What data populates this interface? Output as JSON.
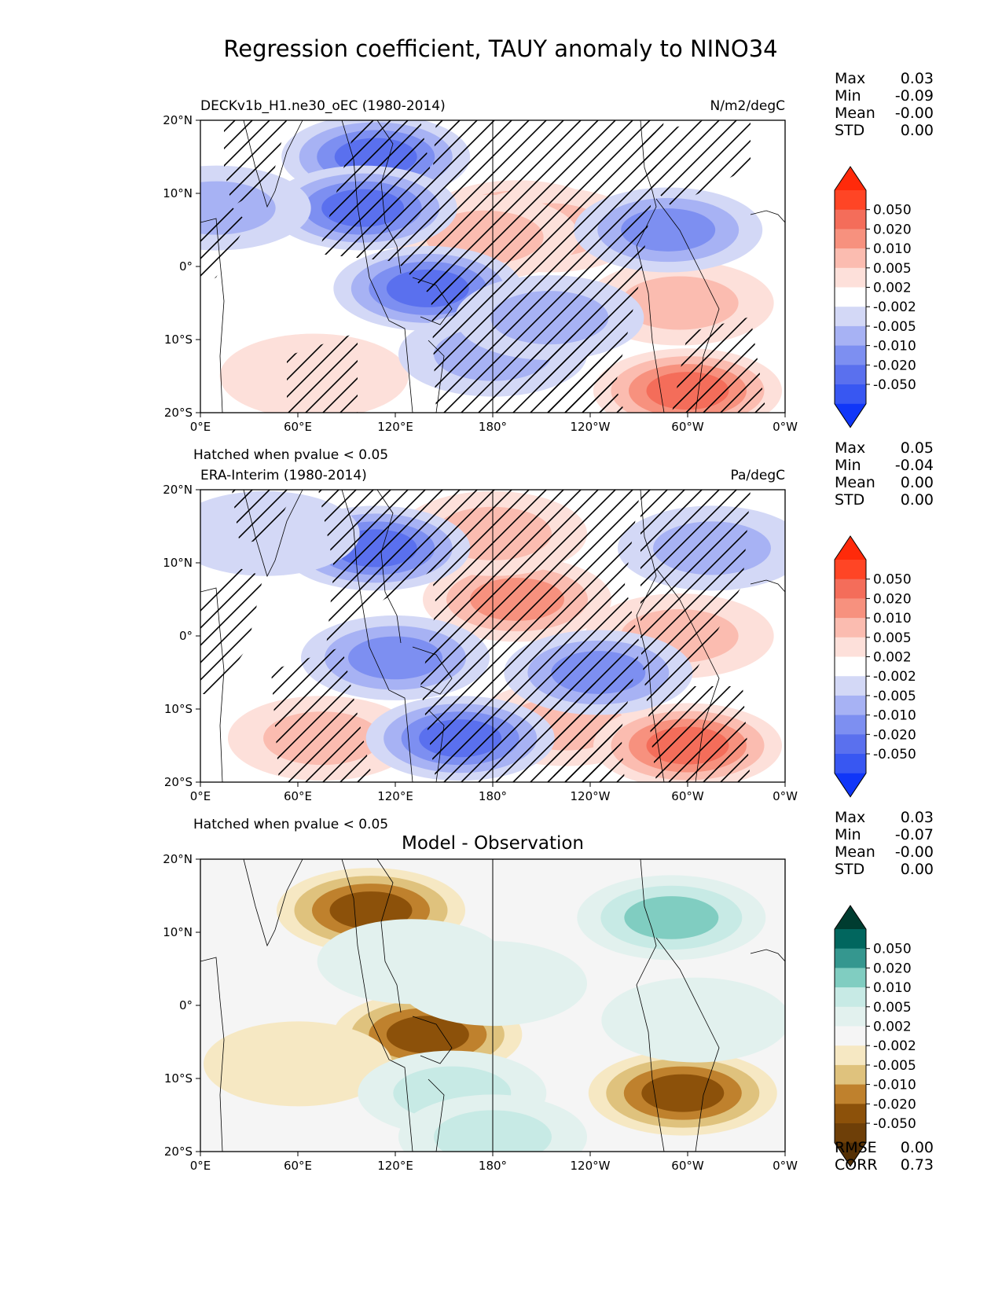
{
  "figure": {
    "title": "Regression coefficient, TAUY anomaly to NINO34"
  },
  "chart_data": [
    {
      "type": "heatmap",
      "panel": "model",
      "left_title": "DECKv1b_H1.ne30_oEC (1980-2014)",
      "right_title": "N/m2/degC",
      "footnote": "Hatched when pvalue < 0.05",
      "x_ticks": [
        "0°E",
        "60°E",
        "120°E",
        "180°",
        "120°W",
        "60°W",
        "0°W"
      ],
      "y_ticks": [
        "20°N",
        "10°N",
        "0°",
        "10°S",
        "20°S"
      ],
      "xlim": [
        0,
        360
      ],
      "ylim": [
        -20,
        20
      ],
      "stats": [
        {
          "label": "Max",
          "value": "0.03"
        },
        {
          "label": "Min",
          "value": "-0.09"
        },
        {
          "label": "Mean",
          "value": "-0.00"
        },
        {
          "label": "STD",
          "value": "0.00"
        }
      ],
      "colorbar": {
        "ticks": [
          "0.050",
          "0.020",
          "0.010",
          "0.005",
          "0.002",
          "-0.002",
          "-0.005",
          "-0.010",
          "-0.020",
          "-0.050"
        ],
        "colors": [
          "#ff2a0a",
          "#ff4525",
          "#f46d5a",
          "#f7917e",
          "#fbbcb0",
          "#fde0da",
          "#ffffff",
          "#d3d8f6",
          "#a7b2f4",
          "#7d8ff1",
          "#5a70ee",
          "#3857f2",
          "#1036f8"
        ]
      },
      "features": [
        {
          "lon": 195,
          "lat": 6,
          "value": 0.015
        },
        {
          "lon": 215,
          "lat": 5,
          "value": 0.008
        },
        {
          "lon": 175,
          "lat": 4,
          "value": 0.006
        },
        {
          "lon": 70,
          "lat": -15,
          "value": 0.004
        },
        {
          "lon": 295,
          "lat": -5,
          "value": 0.007
        },
        {
          "lon": 300,
          "lat": -17,
          "value": 0.02
        },
        {
          "lon": 108,
          "lat": 15,
          "value": -0.03
        },
        {
          "lon": 100,
          "lat": 8,
          "value": -0.02
        },
        {
          "lon": 140,
          "lat": -3,
          "value": -0.02
        },
        {
          "lon": 180,
          "lat": -12,
          "value": -0.006
        },
        {
          "lon": 215,
          "lat": -7,
          "value": -0.005
        },
        {
          "lon": 10,
          "lat": 8,
          "value": -0.005
        },
        {
          "lon": 288,
          "lat": 5,
          "value": -0.01
        }
      ]
    },
    {
      "type": "heatmap",
      "panel": "observation",
      "left_title": "ERA-Interim (1980-2014)",
      "right_title": "Pa/degC",
      "footnote": "Hatched when pvalue < 0.05",
      "x_ticks": [
        "0°E",
        "60°E",
        "120°E",
        "180°",
        "120°W",
        "60°W",
        "0°W"
      ],
      "y_ticks": [
        "20°N",
        "10°N",
        "0°",
        "10°S",
        "20°S"
      ],
      "xlim": [
        0,
        360
      ],
      "ylim": [
        -20,
        20
      ],
      "stats": [
        {
          "label": "Max",
          "value": "0.05"
        },
        {
          "label": "Min",
          "value": "-0.04"
        },
        {
          "label": "Mean",
          "value": "0.00"
        },
        {
          "label": "STD",
          "value": "0.00"
        }
      ],
      "colorbar": {
        "ticks": [
          "0.050",
          "0.020",
          "0.010",
          "0.005",
          "0.002",
          "-0.002",
          "-0.005",
          "-0.010",
          "-0.020",
          "-0.050"
        ],
        "colors": [
          "#ff2a0a",
          "#ff4525",
          "#f46d5a",
          "#f7917e",
          "#fbbcb0",
          "#fde0da",
          "#ffffff",
          "#d3d8f6",
          "#a7b2f4",
          "#7d8ff1",
          "#5a70ee",
          "#3857f2",
          "#1036f8"
        ]
      },
      "features": [
        {
          "lon": 195,
          "lat": 5,
          "value": 0.015
        },
        {
          "lon": 180,
          "lat": 14,
          "value": 0.006
        },
        {
          "lon": 75,
          "lat": -14,
          "value": 0.006
        },
        {
          "lon": 225,
          "lat": -12,
          "value": 0.006
        },
        {
          "lon": 300,
          "lat": -15,
          "value": 0.025
        },
        {
          "lon": 295,
          "lat": 0,
          "value": 0.006
        },
        {
          "lon": 108,
          "lat": 12,
          "value": -0.02
        },
        {
          "lon": 120,
          "lat": -3,
          "value": -0.01
        },
        {
          "lon": 160,
          "lat": -14,
          "value": -0.02
        },
        {
          "lon": 245,
          "lat": -5,
          "value": -0.015
        },
        {
          "lon": 315,
          "lat": 12,
          "value": -0.006
        },
        {
          "lon": 40,
          "lat": 14,
          "value": -0.004
        }
      ]
    },
    {
      "type": "heatmap",
      "panel": "difference",
      "center_title": "Model - Observation",
      "x_ticks": [
        "0°E",
        "60°E",
        "120°E",
        "180°",
        "120°W",
        "60°W",
        "0°W"
      ],
      "y_ticks": [
        "20°N",
        "10°N",
        "0°",
        "10°S",
        "20°S"
      ],
      "xlim": [
        0,
        360
      ],
      "ylim": [
        -20,
        20
      ],
      "stats": [
        {
          "label": "Max",
          "value": "0.03"
        },
        {
          "label": "Min",
          "value": "-0.07"
        },
        {
          "label": "Mean",
          "value": "-0.00"
        },
        {
          "label": "STD",
          "value": "0.00"
        }
      ],
      "metrics": [
        {
          "label": "RMSE",
          "value": "0.00"
        },
        {
          "label": "CORR",
          "value": "0.73"
        }
      ],
      "colorbar": {
        "ticks": [
          "0.050",
          "0.020",
          "0.010",
          "0.005",
          "0.002",
          "-0.002",
          "-0.005",
          "-0.010",
          "-0.020",
          "-0.050"
        ],
        "colors": [
          "#003c30",
          "#01665e",
          "#35978f",
          "#80cdc1",
          "#c7eae5",
          "#e2f1ee",
          "#f5f5f5",
          "#f6e8c3",
          "#dfc27d",
          "#bf812d",
          "#8c510a",
          "#6e3f08",
          "#543005"
        ]
      },
      "features": [
        {
          "lon": 105,
          "lat": 13,
          "value": -0.03
        },
        {
          "lon": 140,
          "lat": -4,
          "value": -0.02
        },
        {
          "lon": 297,
          "lat": -12,
          "value": -0.02
        },
        {
          "lon": 60,
          "lat": -8,
          "value": -0.004
        },
        {
          "lon": 155,
          "lat": -12,
          "value": 0.006
        },
        {
          "lon": 180,
          "lat": 3,
          "value": 0.004
        },
        {
          "lon": 290,
          "lat": 12,
          "value": 0.01
        },
        {
          "lon": 305,
          "lat": -2,
          "value": 0.004
        },
        {
          "lon": 180,
          "lat": -18,
          "value": 0.008
        },
        {
          "lon": 130,
          "lat": 6,
          "value": 0.004
        }
      ]
    }
  ]
}
